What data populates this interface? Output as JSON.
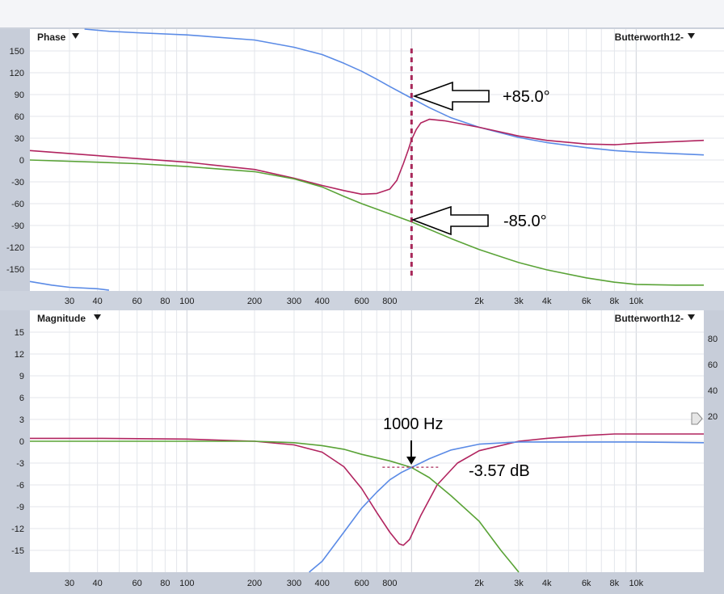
{
  "phase_panel": {
    "title": "Phase",
    "menu_icon": "triangle-down-icon",
    "preset": "Butterworth12-",
    "annotations": {
      "upper": "+85.0°",
      "lower": "-85.0°"
    }
  },
  "magnitude_panel": {
    "title": "Magnitude",
    "menu_icon": "triangle-down-icon",
    "preset": "Butterworth12-",
    "annotations": {
      "freq": "1000 Hz",
      "level": "-3.57 dB"
    },
    "right_axis_ticks": [
      "80",
      "60",
      "40",
      "20"
    ],
    "slider_icon": "triangle-right-icon"
  },
  "colors": {
    "blue": "#5b8be6",
    "red": "#b1245f",
    "green": "#5aa337",
    "marker": "#a8285a"
  },
  "chart_data": [
    {
      "type": "line",
      "title": "Phase",
      "x_scale": "log",
      "xlim": [
        20,
        20000
      ],
      "ylim": [
        -180,
        180
      ],
      "x_ticks": [
        30,
        40,
        60,
        80,
        100,
        200,
        300,
        400,
        600,
        800,
        2000,
        3000,
        4000,
        6000,
        8000,
        10000
      ],
      "x_tick_labels": [
        "30",
        "40",
        "60",
        "80",
        "100",
        "200",
        "300",
        "400",
        "600",
        "800",
        "2k",
        "3k",
        "4k",
        "6k",
        "8k",
        "10k"
      ],
      "y_ticks": [
        150,
        120,
        90,
        60,
        30,
        0,
        -30,
        -60,
        -90,
        -120,
        -150
      ],
      "y_tick_labels": [
        "150",
        "120",
        "90",
        "60",
        "30",
        "0",
        "-30",
        "-60",
        "-90",
        "-120",
        "-150"
      ],
      "grid": true,
      "marker_x": 1000,
      "series": [
        {
          "color": "blue",
          "segments": [
            [
              [
                35,
                180
              ],
              [
                45,
                177
              ],
              [
                60,
                175
              ],
              [
                100,
                172
              ],
              [
                200,
                165
              ],
              [
                300,
                155
              ],
              [
                400,
                145
              ],
              [
                500,
                133
              ],
              [
                600,
                122
              ],
              [
                700,
                111
              ],
              [
                800,
                101
              ],
              [
                1000,
                85
              ],
              [
                1200,
                72
              ],
              [
                1500,
                58
              ],
              [
                2000,
                45
              ],
              [
                3000,
                31
              ],
              [
                4000,
                24
              ],
              [
                6000,
                17
              ],
              [
                8000,
                13
              ],
              [
                10000,
                11
              ],
              [
                20000,
                7
              ]
            ],
            [
              [
                20,
                -167
              ],
              [
                25,
                -172
              ],
              [
                30,
                -175
              ],
              [
                40,
                -177
              ],
              [
                45,
                -179
              ]
            ]
          ]
        },
        {
          "color": "red",
          "segments": [
            [
              [
                20,
                13
              ],
              [
                40,
                6
              ],
              [
                60,
                2
              ],
              [
                100,
                -3
              ],
              [
                200,
                -13
              ],
              [
                300,
                -25
              ],
              [
                400,
                -35
              ],
              [
                500,
                -42
              ],
              [
                600,
                -47
              ],
              [
                700,
                -46
              ],
              [
                800,
                -40
              ],
              [
                860,
                -28
              ],
              [
                920,
                -5
              ],
              [
                970,
                15
              ],
              [
                1000,
                28
              ],
              [
                1050,
                42
              ],
              [
                1100,
                51
              ],
              [
                1200,
                56
              ],
              [
                1400,
                54
              ],
              [
                2000,
                45
              ],
              [
                3000,
                33
              ],
              [
                4000,
                27
              ],
              [
                6000,
                22
              ],
              [
                8000,
                21
              ],
              [
                10000,
                23
              ],
              [
                20000,
                27
              ]
            ]
          ]
        },
        {
          "color": "green",
          "segments": [
            [
              [
                20,
                0
              ],
              [
                40,
                -3
              ],
              [
                60,
                -5
              ],
              [
                100,
                -9
              ],
              [
                200,
                -16
              ],
              [
                300,
                -26
              ],
              [
                400,
                -37
              ],
              [
                500,
                -50
              ],
              [
                600,
                -60
              ],
              [
                800,
                -74
              ],
              [
                1000,
                -85
              ],
              [
                1500,
                -108
              ],
              [
                2000,
                -123
              ],
              [
                3000,
                -141
              ],
              [
                4000,
                -151
              ],
              [
                6000,
                -162
              ],
              [
                8000,
                -168
              ],
              [
                10000,
                -171
              ],
              [
                15000,
                -172
              ],
              [
                20000,
                -172
              ]
            ]
          ]
        }
      ]
    },
    {
      "type": "line",
      "title": "Magnitude",
      "x_scale": "log",
      "xlim": [
        20,
        20000
      ],
      "ylim": [
        -18,
        18
      ],
      "x_ticks": [
        30,
        40,
        60,
        80,
        100,
        200,
        300,
        400,
        600,
        800,
        2000,
        3000,
        4000,
        6000,
        8000,
        10000
      ],
      "x_tick_labels": [
        "30",
        "40",
        "60",
        "80",
        "100",
        "200",
        "300",
        "400",
        "600",
        "800",
        "2k",
        "3k",
        "4k",
        "6k",
        "8k",
        "10k"
      ],
      "y_ticks": [
        15,
        12,
        9,
        6,
        3,
        0,
        -3,
        -6,
        -9,
        -12,
        -15
      ],
      "y_tick_labels": [
        "15",
        "12",
        "9",
        "6",
        "3",
        "0",
        "-3",
        "-6",
        "-9",
        "-12",
        "-15"
      ],
      "grid": true,
      "crossover": {
        "x": 1000,
        "y": -3.57
      },
      "series": [
        {
          "color": "red",
          "segments": [
            [
              [
                20,
                0.4
              ],
              [
                40,
                0.4
              ],
              [
                100,
                0.3
              ],
              [
                200,
                0.0
              ],
              [
                300,
                -0.5
              ],
              [
                400,
                -1.5
              ],
              [
                500,
                -3.5
              ],
              [
                600,
                -6.5
              ],
              [
                700,
                -9.8
              ],
              [
                800,
                -12.5
              ],
              [
                880,
                -14.1
              ],
              [
                920,
                -14.3
              ],
              [
                980,
                -13.5
              ],
              [
                1100,
                -10.2
              ],
              [
                1300,
                -6.0
              ],
              [
                1600,
                -3.0
              ],
              [
                2000,
                -1.3
              ],
              [
                3000,
                0.0
              ],
              [
                4000,
                0.4
              ],
              [
                6000,
                0.8
              ],
              [
                8000,
                1.0
              ],
              [
                10000,
                1.0
              ],
              [
                20000,
                1.0
              ]
            ]
          ]
        },
        {
          "color": "green",
          "segments": [
            [
              [
                20,
                0.0
              ],
              [
                100,
                0.0
              ],
              [
                200,
                0.0
              ],
              [
                300,
                -0.2
              ],
              [
                400,
                -0.6
              ],
              [
                500,
                -1.1
              ],
              [
                600,
                -1.8
              ],
              [
                800,
                -2.7
              ],
              [
                1000,
                -3.6
              ],
              [
                1200,
                -5.0
              ],
              [
                1500,
                -7.5
              ],
              [
                2000,
                -11.0
              ],
              [
                2500,
                -15.0
              ],
              [
                3000,
                -18.5
              ]
            ]
          ]
        },
        {
          "color": "blue",
          "segments": [
            [
              [
                350,
                -18.5
              ],
              [
                400,
                -16.5
              ],
              [
                500,
                -12.5
              ],
              [
                600,
                -9.2
              ],
              [
                700,
                -7.0
              ],
              [
                800,
                -5.3
              ],
              [
                900,
                -4.3
              ],
              [
                1000,
                -3.6
              ],
              [
                1200,
                -2.4
              ],
              [
                1500,
                -1.2
              ],
              [
                2000,
                -0.4
              ],
              [
                3000,
                -0.1
              ],
              [
                5000,
                -0.1
              ],
              [
                10000,
                -0.1
              ],
              [
                20000,
                -0.2
              ]
            ]
          ]
        }
      ]
    }
  ]
}
